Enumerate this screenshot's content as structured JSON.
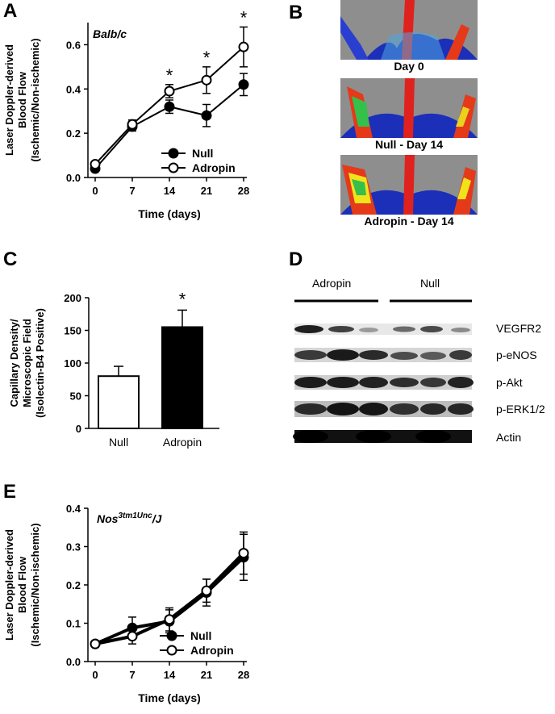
{
  "panels": {
    "A": {
      "letter": "A",
      "strain": "Balb/c",
      "ylabel_lines": [
        "Laser Doppler-derived",
        "Blood Flow",
        "(Ischemic/Non-ischemic)"
      ],
      "xlabel": "Time (days)",
      "legend": [
        "Null",
        "Adropin"
      ]
    },
    "B": {
      "letter": "B",
      "captions": [
        "Day 0",
        "Null - Day 14",
        "Adropin - Day 14"
      ]
    },
    "C": {
      "letter": "C",
      "ylabel_lines": [
        "Capillary Density/",
        "Microscopic Field",
        "(Isolectin-B4 Positive)"
      ]
    },
    "D": {
      "letter": "D",
      "groups": [
        "Adropin",
        "Null"
      ],
      "rows": [
        "VEGFR2",
        "p-eNOS",
        "p-Akt",
        "p-ERK1/2",
        "Actin"
      ]
    },
    "E": {
      "letter": "E",
      "strain_base": "Nos",
      "strain_sup": "3tm1Unc",
      "strain_suffix": "/J",
      "ylabel_lines": [
        "Laser Doppler-derived",
        "Blood Flow",
        "(Ischemic/Non-ischemic)"
      ],
      "xlabel": "Time (days)",
      "legend": [
        "Null",
        "Adropin"
      ]
    }
  },
  "colors": {
    "null_marker": "#000000",
    "adropin_marker": "#ffffff",
    "axis": "#000000"
  },
  "chart_data": [
    {
      "id": "A",
      "type": "line",
      "title": "Balb/c",
      "xlabel": "Time (days)",
      "ylabel": "Laser Doppler-derived Blood Flow (Ischemic/Non-ischemic)",
      "x": [
        0,
        7,
        14,
        21,
        28
      ],
      "xticks": [
        "0",
        "7",
        "14",
        "21",
        "28"
      ],
      "yticks": [
        "0.0",
        "0.2",
        "0.4",
        "0.6"
      ],
      "ylim": [
        0,
        0.7
      ],
      "series": [
        {
          "name": "Null",
          "marker": "filled",
          "values": [
            0.04,
            0.23,
            0.32,
            0.28,
            0.42
          ],
          "err": [
            0.01,
            0.02,
            0.03,
            0.05,
            0.05
          ]
        },
        {
          "name": "Adropin",
          "marker": "open",
          "values": [
            0.06,
            0.24,
            0.39,
            0.44,
            0.59
          ],
          "err": [
            0.01,
            0.02,
            0.03,
            0.06,
            0.09
          ]
        }
      ],
      "annotations": [
        "*",
        "*",
        "*"
      ],
      "annotation_x": [
        14,
        21,
        28
      ],
      "legend_position": "bottom-right"
    },
    {
      "id": "C",
      "type": "bar",
      "categories": [
        "Null",
        "Adropin"
      ],
      "ylabel": "Capillary Density/ Microscopic Field (Isolectin-B4 Positive)",
      "yticks": [
        "0",
        "50",
        "100",
        "150",
        "200"
      ],
      "ylim": [
        0,
        200
      ],
      "values": [
        80,
        155
      ],
      "err": [
        15,
        26
      ],
      "fills": [
        "#ffffff",
        "#000000"
      ],
      "annotations": [
        "",
        "*"
      ]
    },
    {
      "id": "E",
      "type": "line",
      "title": "Nos3tm1Unc/J",
      "xlabel": "Time (days)",
      "ylabel": "Laser Doppler-derived Blood Flow (Ischemic/Non-ischemic)",
      "x": [
        0,
        7,
        14,
        21,
        28
      ],
      "xticks": [
        "0",
        "7",
        "14",
        "21",
        "28"
      ],
      "yticks": [
        "0.0",
        "0.1",
        "0.2",
        "0.3",
        "0.4"
      ],
      "ylim": [
        0,
        0.4
      ],
      "series": [
        {
          "name": "Null",
          "marker": "filled",
          "values": [
            0.046,
            0.088,
            0.105,
            0.18,
            0.272
          ],
          "err": [
            0.005,
            0.028,
            0.03,
            0.035,
            0.06
          ]
        },
        {
          "name": "Adropin",
          "marker": "open",
          "values": [
            0.046,
            0.066,
            0.11,
            0.185,
            0.283
          ],
          "err": [
            0.005,
            0.02,
            0.03,
            0.03,
            0.055
          ]
        }
      ],
      "legend_position": "bottom-right"
    }
  ]
}
